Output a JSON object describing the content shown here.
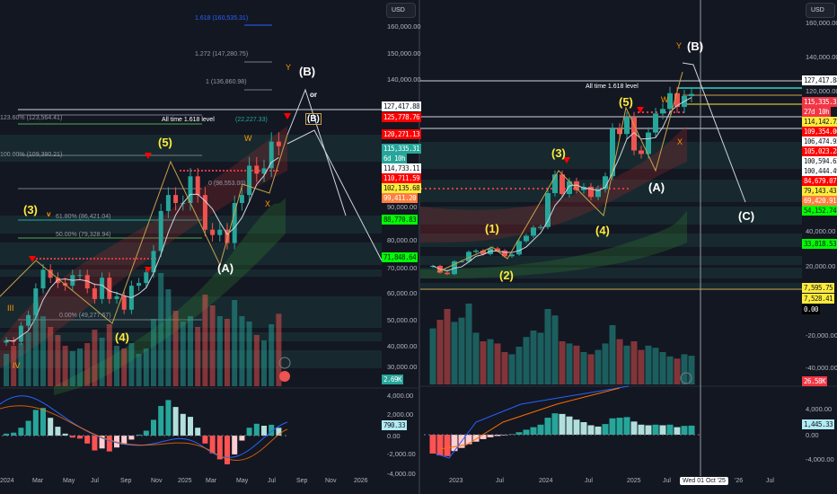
{
  "colors": {
    "up": "#26a69a",
    "down": "#ef5350",
    "wave_yellow": "#ffeb3b",
    "wave_orange": "#ff9800",
    "white": "#ffffff",
    "fib_green": "#4caf50"
  },
  "left_axis": {
    "currency": "USD",
    "price_ticks": [
      "160,000.00",
      "150,000.00",
      "140,000.00",
      "90,000.00",
      "80,000.00",
      "70,000.00",
      "60,000.00",
      "50,000.00",
      "40,000.00",
      "30,000.00"
    ],
    "macd_ticks": [
      "4,000.00",
      "2,000.00",
      "0.00",
      "-2,000.00",
      "-4,000.00"
    ],
    "labels": [
      {
        "text": "127,417.88",
        "bg": "#ffffff",
        "fg": "#131722"
      },
      {
        "text": "125,778.76",
        "bg": "#ff0000",
        "fg": "#ffffff"
      },
      {
        "text": "120,271.13",
        "bg": "#ff0000",
        "fg": "#ffffff"
      },
      {
        "text": "115,335.31",
        "bg": "#26a69a",
        "fg": "#ffffff"
      },
      {
        "text": "6d 10h",
        "bg": "#26a69a",
        "fg": "#ffffff"
      },
      {
        "text": "114,733.11",
        "bg": "#ffffff",
        "fg": "#131722"
      },
      {
        "text": "110,711.59",
        "bg": "#ff0000",
        "fg": "#ffffff"
      },
      {
        "text": "102,135.68",
        "bg": "#ffeb3b",
        "fg": "#131722"
      },
      {
        "text": "99,411.20",
        "bg": "#ff7f3f",
        "fg": "#ffffff"
      },
      {
        "text": "88,770.83",
        "bg": "#00ff00",
        "fg": "#131722"
      },
      {
        "text": "71,848.64",
        "bg": "#00ff00",
        "fg": "#131722"
      },
      {
        "text": "2.69K",
        "bg": "#26a69a",
        "fg": "#ffffff"
      },
      {
        "text": "790.33",
        "bg": "#b2ebf2",
        "fg": "#131722"
      }
    ]
  },
  "right_axis": {
    "currency": "USD",
    "price_ticks": [
      "160,000.00",
      "140,000.00",
      "120,000.00",
      "40,000.00",
      "20,000.00",
      "-20,000.00",
      "-40,000.00"
    ],
    "macd_ticks": [
      "4,000.00",
      "0.00",
      "-4,000.00"
    ],
    "labels": [
      {
        "text": "127,417.88",
        "bg": "#ffffff",
        "fg": "#131722"
      },
      {
        "text": "115,335.31",
        "bg": "#f23645",
        "fg": "#ffffff"
      },
      {
        "text": "27d 10h",
        "bg": "#f23645",
        "fg": "#ffffff"
      },
      {
        "text": "114,142.73",
        "bg": "#ffeb3b",
        "fg": "#131722"
      },
      {
        "text": "109,354.00",
        "bg": "#ff0000",
        "fg": "#ffffff"
      },
      {
        "text": "106,474.95",
        "bg": "#ffffff",
        "fg": "#131722"
      },
      {
        "text": "105,023.28",
        "bg": "#ff0000",
        "fg": "#ffffff"
      },
      {
        "text": "100,594.62",
        "bg": "#ffffff",
        "fg": "#131722"
      },
      {
        "text": "100,444.49",
        "bg": "#ffffff",
        "fg": "#131722"
      },
      {
        "text": "84,679.07",
        "bg": "#ff0000",
        "fg": "#ffffff"
      },
      {
        "text": "79,143.43",
        "bg": "#ffeb3b",
        "fg": "#131722"
      },
      {
        "text": "69,420.91",
        "bg": "#ff7f3f",
        "fg": "#ffffff"
      },
      {
        "text": "54,152.74",
        "bg": "#00ff00",
        "fg": "#131722"
      },
      {
        "text": "33,818.53",
        "bg": "#00ff00",
        "fg": "#131722"
      },
      {
        "text": "7,595.75",
        "bg": "#ffeb3b",
        "fg": "#131722"
      },
      {
        "text": "7,528.41",
        "bg": "#ffeb3b",
        "fg": "#131722"
      },
      {
        "text": "0.00",
        "bg": "#000000",
        "fg": "#ffffff"
      },
      {
        "text": "26.58K",
        "bg": "#f23645",
        "fg": "#ffffff"
      },
      {
        "text": "1,445.33",
        "bg": "#b2ebf2",
        "fg": "#131722"
      }
    ]
  },
  "left_time_axis": [
    "2024",
    "Mar",
    "May",
    "Jul",
    "Sep",
    "Nov",
    "2025",
    "Mar",
    "May",
    "Jul",
    "Sep",
    "Nov",
    "2026"
  ],
  "right_time_axis": [
    "2023",
    "Jul",
    "2024",
    "Jul",
    "2025",
    "Jul",
    "'26",
    "Jul"
  ],
  "crosshair_date": "Wed 01 Oct '25",
  "left_annotations": {
    "fib_ext": [
      "1.618 (160,535.31)",
      "1.272 (147,280.75)",
      "1 (136,860.98)"
    ],
    "ath": "All time 1.618 level",
    "ath_val": "(22,227.33)",
    "fib_1236": "123.60% (123,564.41)",
    "fib_100": "100.00% (109,380.21)",
    "fib_0b": "0 (98,553.00)",
    "fib_618": "61.80% (86,421.04)",
    "fib_50": "50.00% (79,328.94)",
    "fib_0": "0.00% (49,277.67)"
  },
  "left_waves": {
    "w3": "(3)",
    "w5": "(5)",
    "w4": "(4)",
    "A": "(A)",
    "B": "(B)",
    "B_box": "(B)",
    "or": "or",
    "W": "W",
    "X": "X",
    "Y": "Y",
    "III": "III",
    "IV": "IV",
    "v": "v"
  },
  "right_annotations": {
    "ath": "All time 1.618 level"
  },
  "right_waves": {
    "w1": "(1)",
    "w2": "(2)",
    "w3": "(3)",
    "w4": "(4)",
    "w5": "(5)",
    "A": "(A)",
    "B": "(B)",
    "C": "(C)",
    "W": "W",
    "X": "X",
    "Y": "Y"
  },
  "chart_data": [
    {
      "type": "candlestick",
      "title": "",
      "timeframe_note": "biweekly closes, Jan 2024 – Jul 2025",
      "x_start": "2024-01",
      "closes": [
        42.5,
        42,
        48,
        52,
        62,
        69,
        66,
        64,
        63,
        67,
        67,
        62,
        58,
        66,
        58,
        59,
        54,
        63,
        64,
        68,
        76,
        91,
        97,
        94,
        94,
        104,
        97,
        84,
        82,
        84,
        79,
        94,
        97,
        108,
        105,
        107,
        117,
        115.3
      ],
      "close_units": "thousand USD",
      "volume_k": [
        1.2,
        1.5,
        1.6,
        2.0,
        3.1,
        2.6,
        2.2,
        1.9,
        1.5,
        1.3,
        1.4,
        1.6,
        2.1,
        1.8,
        2.3,
        1.5,
        1.4,
        1.6,
        1.2,
        1.4,
        2.5,
        4.2,
        3.6,
        2.8,
        2.4,
        2.6,
        2.2,
        3.4,
        3.0,
        2.6,
        2.5,
        3.2,
        2.6,
        2.4,
        1.9,
        1.7,
        2.3,
        2.69
      ],
      "macd_hist": [
        200,
        300,
        800,
        1500,
        2600,
        2800,
        1800,
        900,
        200,
        -200,
        -300,
        -800,
        -1500,
        -1300,
        -1600,
        -1200,
        -900,
        -400,
        100,
        500,
        1600,
        3000,
        3600,
        2900,
        2200,
        1900,
        800,
        -800,
        -1800,
        -2400,
        -2900,
        -1900,
        -500,
        800,
        1200,
        1000,
        1100,
        790
      ],
      "ylim": [
        30000,
        160000
      ]
    },
    {
      "type": "candlestick",
      "title": "",
      "timeframe_note": "monthly closes, Oct 2022 – Oct 2025",
      "x_start": "2022-10",
      "closes": [
        20.5,
        17.2,
        16.5,
        23.1,
        23.1,
        28.5,
        29.2,
        27.2,
        30.5,
        29.2,
        26,
        27,
        34.6,
        37.7,
        42.3,
        42.6,
        61.1,
        71.3,
        60.6,
        67.5,
        62.7,
        64.6,
        59,
        63.3,
        70.3,
        96.4,
        93.4,
        102.4,
        84.4,
        82.5,
        94.2,
        104.6,
        107.1,
        115.7,
        108.2,
        114.1,
        115.3
      ],
      "close_units": "thousand USD",
      "volume_k": [
        52,
        60,
        70,
        58,
        62,
        75,
        48,
        40,
        42,
        38,
        30,
        28,
        35,
        44,
        50,
        48,
        70,
        64,
        40,
        38,
        36,
        30,
        28,
        32,
        38,
        55,
        42,
        36,
        40,
        32,
        36,
        34,
        30,
        26,
        24,
        28,
        26.58
      ],
      "macd_hist": [
        -3000,
        -3300,
        -3400,
        -2600,
        -2100,
        -1500,
        -1100,
        -700,
        -400,
        -200,
        -100,
        100,
        400,
        800,
        1200,
        1600,
        2700,
        3400,
        3300,
        2900,
        2400,
        2000,
        1500,
        1300,
        1700,
        2600,
        2700,
        2800,
        2100,
        1600,
        1500,
        1600,
        1500,
        1600,
        1200,
        1400,
        1445
      ],
      "ylim": [
        -40000,
        160000
      ]
    }
  ]
}
